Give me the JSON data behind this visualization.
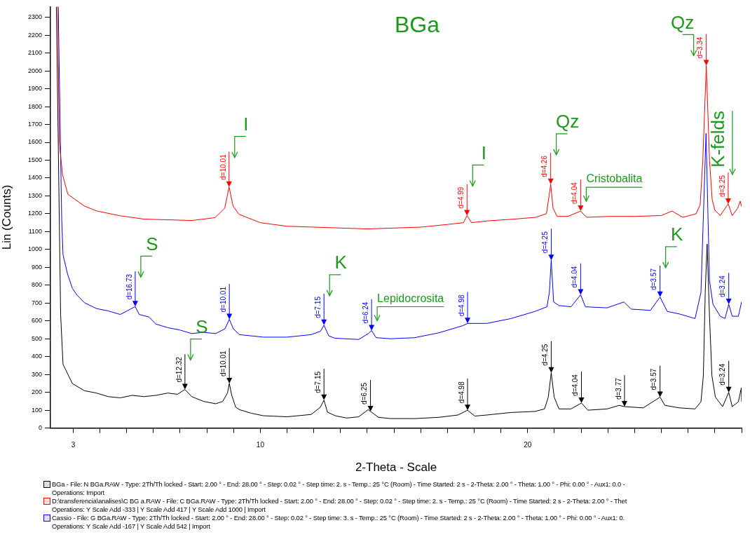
{
  "chart_data": {
    "type": "line",
    "title": "BGa",
    "xlabel": "2-Theta - Scale",
    "ylabel": "Lin (Counts)",
    "xlim": [
      2.15,
      28
    ],
    "xticks": [
      {
        "value": 3,
        "label": "3"
      },
      {
        "value": 4,
        "label": null
      },
      {
        "value": 5,
        "label": null
      },
      {
        "value": 6,
        "label": null
      },
      {
        "value": 7,
        "label": null
      },
      {
        "value": 8,
        "label": null
      },
      {
        "value": 9,
        "label": null
      },
      {
        "value": 10,
        "label": "10"
      },
      {
        "value": 11,
        "label": null
      },
      {
        "value": 12,
        "label": null
      },
      {
        "value": 13,
        "label": null
      },
      {
        "value": 14,
        "label": null
      },
      {
        "value": 15,
        "label": null
      },
      {
        "value": 16,
        "label": null
      },
      {
        "value": 17,
        "label": null
      },
      {
        "value": 18,
        "label": null
      },
      {
        "value": 19,
        "label": null
      },
      {
        "value": 20,
        "label": "20"
      },
      {
        "value": 21,
        "label": null
      },
      {
        "value": 22,
        "label": null
      },
      {
        "value": 23,
        "label": null
      },
      {
        "value": 24,
        "label": null
      },
      {
        "value": 25,
        "label": null
      },
      {
        "value": 26,
        "label": null
      },
      {
        "value": 27,
        "label": null
      },
      {
        "value": 28,
        "label": null
      }
    ],
    "ylim": [
      0,
      2360
    ],
    "yticks": [
      0,
      100,
      200,
      300,
      400,
      500,
      600,
      700,
      800,
      900,
      1000,
      1100,
      1200,
      1300,
      1400,
      1500,
      1600,
      1700,
      1800,
      1900,
      2000,
      2100,
      2200,
      2300
    ],
    "grid": false,
    "legend": "bottom",
    "marker": "none",
    "line_style": "solid",
    "series": [
      {
        "name": "BGa - File: N BGa.RAW - Type: 2Th/Th locked - Start: 2.00 ° - End: 28.00 ° - Step: 0.02 ° - Step time: 2. s - Temp.: 25 °C (Room) - Time Started: 2 s - 2-Theta: 2.00 ° - Theta: 1.00 ° - Phi: 0.00 ° - Aux1: 0.0 -\nOperations: Import",
        "color": "#000000",
        "x": [
          2.37,
          2.53,
          2.62,
          2.71,
          2.97,
          3.42,
          3.87,
          4.31,
          4.76,
          5.2,
          5.65,
          6.1,
          6.54,
          6.9,
          7.18,
          7.43,
          7.88,
          8.33,
          8.59,
          8.77,
          8.84,
          8.93,
          9.08,
          9.22,
          9.66,
          10.11,
          11.0,
          11.9,
          12.24,
          12.38,
          12.51,
          12.8,
          13.23,
          13.68,
          14.03,
          14.12,
          14.42,
          14.87,
          15.77,
          16.67,
          17.39,
          17.75,
          18.02,
          18.47,
          19.37,
          20.27,
          20.63,
          20.77,
          20.88,
          20.99,
          21.17,
          21.62,
          22.01,
          22.25,
          22.97,
          23.42,
          23.62,
          24.32,
          24.95,
          25.13,
          25.67,
          26.26,
          26.48,
          26.57,
          26.64,
          26.71,
          26.8,
          26.89,
          27.02,
          27.29,
          27.52,
          27.65,
          27.88,
          27.99,
          28.0
        ],
        "values": [
          2360,
          636,
          356,
          329,
          249,
          209,
          196,
          176,
          169,
          183,
          176,
          183,
          196,
          189,
          216,
          176,
          149,
          136,
          149,
          196,
          250,
          183,
          116,
          103,
          83,
          69,
          63,
          76,
          116,
          156,
          89,
          69,
          56,
          63,
          103,
          93,
          60,
          53,
          53,
          60,
          73,
          100,
          67,
          73,
          87,
          93,
          107,
          173,
          310,
          173,
          107,
          107,
          140,
          100,
          107,
          127,
          120,
          113,
          173,
          127,
          113,
          107,
          147,
          293,
          759,
          1030,
          626,
          293,
          173,
          120,
          200,
          120,
          147,
          226,
          147
        ]
      },
      {
        "name": "D:\\transferencia\\analises\\C BG a.RAW - File: C BGa.RAW - Type: 2Th/Th locked - Start: 2.00 ° - End: 28.00 ° - Step: 0.02 ° - Step time: 2. s - Temp.: 25 °C (Room) - Time Started: 2 s - 2-Theta: 2.00 ° - Thet\nOperations: Y Scale Add -333 | Y Scale Add 417 | Y Scale Add 1000 | Import",
        "color": "#ff0000",
        "x": [
          2.42,
          2.48,
          2.6,
          2.8,
          3.42,
          3.87,
          4.74,
          5.65,
          7.43,
          8.31,
          8.67,
          8.83,
          8.98,
          9.2,
          9.47,
          10.0,
          11.0,
          12.0,
          13.0,
          14.0,
          15.0,
          16.0,
          17.0,
          17.6,
          17.73,
          17.9,
          18.5,
          19.5,
          20.3,
          20.7,
          20.8,
          20.86,
          20.95,
          21.1,
          21.5,
          21.98,
          22.2,
          23.0,
          24.0,
          25.0,
          25.4,
          25.8,
          26.3,
          26.45,
          26.55,
          26.68,
          26.8,
          26.9,
          27.0,
          27.2,
          27.5,
          27.65,
          27.85,
          27.95,
          28.0
        ],
        "values": [
          2360,
          1600,
          1420,
          1309,
          1243,
          1216,
          1189,
          1170,
          1162,
          1178,
          1232,
          1350,
          1243,
          1197,
          1181,
          1150,
          1130,
          1125,
          1120,
          1115,
          1120,
          1125,
          1140,
          1150,
          1190,
          1150,
          1160,
          1170,
          1180,
          1200,
          1300,
          1365,
          1230,
          1185,
          1185,
          1215,
          1180,
          1185,
          1185,
          1190,
          1215,
          1180,
          1200,
          1250,
          1500,
          2030,
          1500,
          1280,
          1220,
          1190,
          1255,
          1190,
          1230,
          1270,
          1240
        ]
      },
      {
        "name": "Cassio - File: G BGa.RAW - Type: 2Th/Th locked - Start: 2.00 ° - End: 28.00 ° - Step: 0.02 ° - Step time: 3. s - Temp.: 25 °C (Room) - Time Started: 2 s - 2-Theta: 2.00 ° - Theta: 1.00 ° - Phi: 0.00 ° - Aux1: 0.\nOperations: Y Scale Add -167 | Y Scale Add 542 | Import",
        "color": "#0000ff",
        "x": [
          2.44,
          2.57,
          2.62,
          2.79,
          2.97,
          3.15,
          3.42,
          3.87,
          4.31,
          4.76,
          5.32,
          5.47,
          5.83,
          6.1,
          6.54,
          6.99,
          7.43,
          7.88,
          8.33,
          8.68,
          8.84,
          8.99,
          9.22,
          10.11,
          11.0,
          11.9,
          12.25,
          12.38,
          12.56,
          12.79,
          13.68,
          14.04,
          14.16,
          14.33,
          14.87,
          15.77,
          16.67,
          17.57,
          17.75,
          18.47,
          19.37,
          20.27,
          20.72,
          20.81,
          20.88,
          20.97,
          21.17,
          21.62,
          21.98,
          22.16,
          22.97,
          23.6,
          23.87,
          24.59,
          24.95,
          25.22,
          25.67,
          26.26,
          26.48,
          26.67,
          26.8,
          26.93,
          27.2,
          27.38,
          27.52,
          27.65,
          27.88,
          28.0
        ],
        "values": [
          2360,
          1169,
          969,
          862,
          782,
          743,
          702,
          669,
          656,
          636,
          680,
          636,
          622,
          582,
          562,
          549,
          529,
          536,
          529,
          556,
          609,
          556,
          523,
          509,
          509,
          523,
          542,
          576,
          516,
          503,
          496,
          529,
          546,
          506,
          500,
          506,
          533,
          573,
          586,
          586,
          613,
          653,
          679,
          759,
          940,
          706,
          686,
          679,
          746,
          679,
          673,
          706,
          666,
          659,
          733,
          653,
          639,
          613,
          759,
          1650,
          826,
          693,
          626,
          613,
          693,
          626,
          626,
          706
        ]
      }
    ],
    "annotations": [
      {
        "text": "d=10.01",
        "x": 8.83,
        "y": 1350
      },
      {
        "text": "d=4.99",
        "x": 17.73,
        "y": 1190
      },
      {
        "text": "d=4.26",
        "x": 20.86,
        "y": 1365
      },
      {
        "text": "d=4.04",
        "x": 21.98,
        "y": 1215
      },
      {
        "text": "d=3.34",
        "x": 26.68,
        "y": 2030
      },
      {
        "text": "d=3.25",
        "x": 27.5,
        "y": 1255
      },
      {
        "text": "d=16.73",
        "x": 5.32,
        "y": 680
      },
      {
        "text": "d=10.01",
        "x": 8.84,
        "y": 609
      },
      {
        "text": "d=7.15",
        "x": 12.38,
        "y": 576
      },
      {
        "text": "d=6.24",
        "x": 14.16,
        "y": 546
      },
      {
        "text": "d=4.98",
        "x": 17.75,
        "y": 586
      },
      {
        "text": "d=4.25",
        "x": 20.88,
        "y": 940
      },
      {
        "text": "d=4.04",
        "x": 21.98,
        "y": 746
      },
      {
        "text": "d=3.57",
        "x": 24.95,
        "y": 733
      },
      {
        "text": "d=3.24",
        "x": 27.52,
        "y": 693
      },
      {
        "text": "d=12.32",
        "x": 7.18,
        "y": 216
      },
      {
        "text": "d=10.01",
        "x": 8.84,
        "y": 250
      },
      {
        "text": "d=7.15",
        "x": 12.38,
        "y": 156
      },
      {
        "text": "d=6.25",
        "x": 14.12,
        "y": 93
      },
      {
        "text": "d=4.98",
        "x": 17.75,
        "y": 100
      },
      {
        "text": "d=4.25",
        "x": 20.88,
        "y": 310
      },
      {
        "text": "d=4.04",
        "x": 22.01,
        "y": 140
      },
      {
        "text": "d=3.77",
        "x": 23.62,
        "y": 120
      },
      {
        "text": "d=3.57",
        "x": 24.95,
        "y": 173
      },
      {
        "text": "d=3.24",
        "x": 27.52,
        "y": 200
      },
      {
        "text": "I",
        "x": 8.83,
        "y": 1350
      },
      {
        "text": "S",
        "x": 5.32,
        "y": 680
      },
      {
        "text": "K",
        "x": 12.38,
        "y": 576
      },
      {
        "text": "Lepidocrosita",
        "x": 14.16,
        "y": 546
      },
      {
        "text": "S",
        "x": 7.18,
        "y": 216
      },
      {
        "text": "I",
        "x": 17.73,
        "y": 1190
      },
      {
        "text": "Qz",
        "x": 20.86,
        "y": 1365
      },
      {
        "text": "Cristobalita",
        "x": 21.98,
        "y": 1215
      },
      {
        "text": "Qz",
        "x": 26.68,
        "y": 2030
      },
      {
        "text": "K-felds",
        "x": 27.5,
        "y": 1255
      },
      {
        "text": "K",
        "x": 24.95,
        "y": 733
      }
    ]
  }
}
